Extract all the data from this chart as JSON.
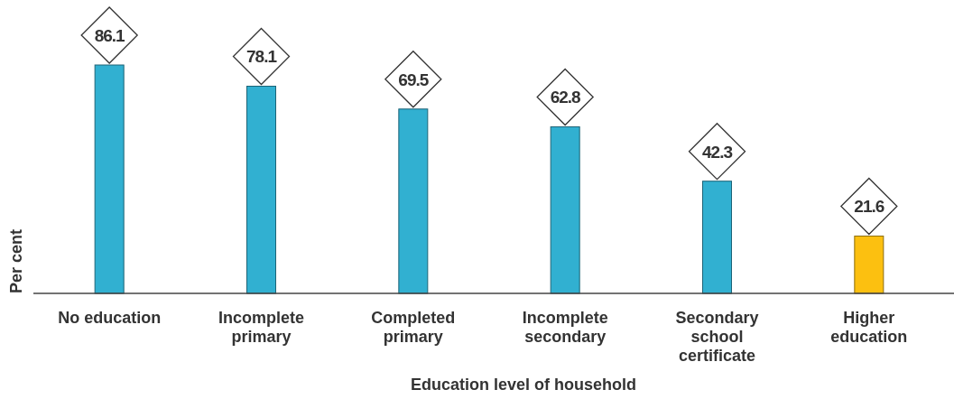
{
  "chart_data": {
    "type": "bar",
    "categories": [
      "No education",
      "Incomplete\nprimary",
      "Completed\nprimary",
      "Incomplete\nsecondary",
      "Secondary\nschool\ncertificate",
      "Higher\neducation"
    ],
    "values": [
      86.1,
      78.1,
      69.5,
      62.8,
      42.3,
      21.6
    ],
    "colors": [
      "#31b0d1",
      "#31b0d1",
      "#31b0d1",
      "#31b0d1",
      "#31b0d1",
      "#fcc010"
    ],
    "data_labels": true,
    "xlabel": "Education level of household",
    "ylabel": "Per cent",
    "tick_labels": "x"
  }
}
